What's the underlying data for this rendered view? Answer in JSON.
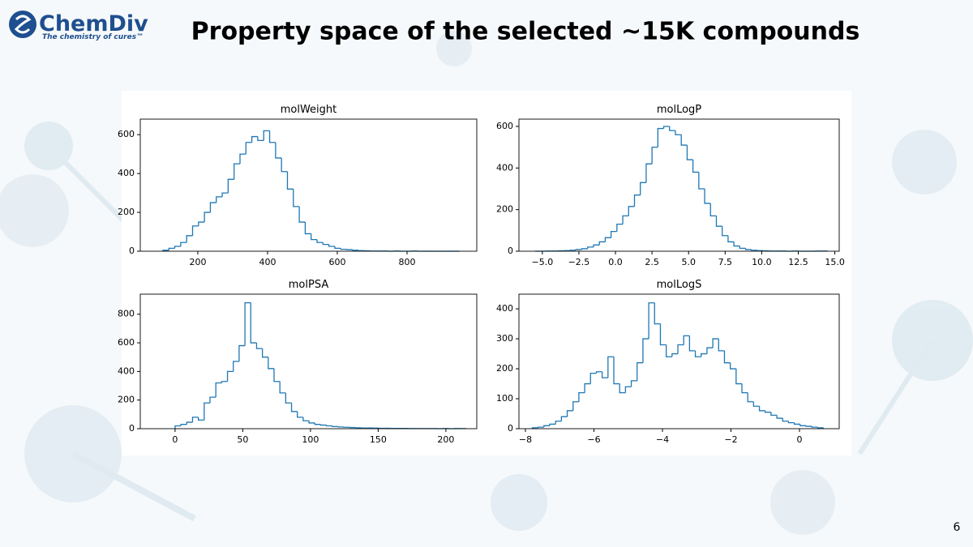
{
  "slide": {
    "logo": "ChemDiv",
    "tagline": "The chemistry of cures™",
    "title": "Property space of the selected ~15K compounds",
    "page_number": "6"
  },
  "chart_data": [
    {
      "type": "histogram",
      "title": "molWeight",
      "color": "#1f77b4",
      "bins": [
        100,
        117,
        134,
        151,
        168,
        185,
        202,
        219,
        236,
        253,
        270,
        287,
        304,
        321,
        338,
        355,
        372,
        389,
        406,
        423,
        440,
        457,
        474,
        491,
        508,
        525,
        542,
        559,
        576,
        593,
        610,
        627,
        644,
        661,
        678,
        695,
        712,
        729,
        746,
        763,
        780,
        797,
        814,
        831,
        848,
        865,
        882,
        899,
        916,
        933,
        950
      ],
      "values": [
        5,
        15,
        25,
        45,
        80,
        130,
        150,
        200,
        250,
        280,
        300,
        370,
        450,
        500,
        560,
        590,
        570,
        620,
        560,
        480,
        410,
        320,
        230,
        150,
        90,
        60,
        45,
        35,
        25,
        15,
        10,
        8,
        5,
        3,
        2,
        1,
        1,
        1,
        0,
        1,
        0,
        0,
        1,
        0,
        0,
        0,
        0,
        0,
        0,
        0
      ],
      "xlim": [
        35,
        1000
      ],
      "xticks": [
        200,
        400,
        600,
        800
      ],
      "ylim": [
        0,
        680
      ],
      "yticks": [
        0,
        200,
        400,
        600
      ]
    },
    {
      "type": "histogram",
      "title": "molLogP",
      "color": "#1f77b4",
      "bins": [
        -5.5,
        -5.1,
        -4.7,
        -4.3,
        -3.9,
        -3.5,
        -3.1,
        -2.7,
        -2.3,
        -1.9,
        -1.5,
        -1.1,
        -0.7,
        -0.3,
        0.1,
        0.5,
        0.9,
        1.3,
        1.7,
        2.1,
        2.5,
        2.9,
        3.3,
        3.7,
        4.1,
        4.5,
        4.9,
        5.3,
        5.7,
        6.1,
        6.5,
        6.9,
        7.3,
        7.7,
        8.1,
        8.5,
        8.9,
        9.3,
        9.7,
        10.1,
        10.5,
        10.9,
        11.3,
        11.7,
        12.1,
        12.5,
        12.9,
        13.3,
        13.7,
        14.1,
        14.5
      ],
      "values": [
        0,
        0,
        1,
        1,
        2,
        3,
        5,
        8,
        12,
        20,
        30,
        45,
        65,
        95,
        130,
        170,
        215,
        270,
        330,
        420,
        500,
        590,
        600,
        580,
        560,
        510,
        440,
        380,
        300,
        230,
        170,
        120,
        75,
        45,
        25,
        14,
        8,
        5,
        3,
        2,
        1,
        1,
        1,
        0,
        1,
        0,
        0,
        0,
        1,
        1
      ],
      "xlim": [
        -6.6,
        15.3
      ],
      "xticks": [
        {
          "value": -5,
          "label": "−5.0"
        },
        {
          "value": -2.5,
          "label": "−2.5"
        },
        {
          "value": 0,
          "label": "0.0"
        },
        {
          "value": 2.5,
          "label": "2.5"
        },
        {
          "value": 5,
          "label": "5.0"
        },
        {
          "value": 7.5,
          "label": "7.5"
        },
        {
          "value": 10,
          "label": "10.0"
        },
        {
          "value": 12.5,
          "label": "12.5"
        },
        {
          "value": 15,
          "label": "15.0"
        }
      ],
      "ylim": [
        0,
        635
      ],
      "yticks": [
        0,
        200,
        400,
        600
      ]
    },
    {
      "type": "histogram",
      "title": "molPSA",
      "color": "#1f77b4",
      "bins": [
        0,
        4.3,
        8.6,
        12.9,
        17.2,
        21.5,
        25.8,
        30.1,
        34.4,
        38.7,
        43,
        47.3,
        51.6,
        55.9,
        60.2,
        64.5,
        68.8,
        73.1,
        77.4,
        81.7,
        86,
        90.3,
        94.6,
        98.9,
        103.2,
        107.5,
        111.8,
        116.1,
        120.4,
        124.7,
        129,
        133.3,
        137.6,
        141.9,
        146.2,
        150.5,
        154.8,
        159.1,
        163.4,
        167.7,
        172,
        176.3,
        180.6,
        184.9,
        189.2,
        193.5,
        197.8,
        202.1,
        206.4,
        210.7,
        215
      ],
      "values": [
        20,
        30,
        45,
        80,
        60,
        180,
        220,
        320,
        330,
        400,
        470,
        580,
        880,
        600,
        560,
        500,
        420,
        330,
        250,
        180,
        120,
        80,
        55,
        40,
        30,
        25,
        20,
        15,
        12,
        10,
        8,
        6,
        5,
        5,
        4,
        3,
        3,
        2,
        2,
        2,
        1,
        1,
        1,
        1,
        1,
        0,
        1,
        0,
        1,
        1
      ],
      "xlim": [
        -25.7,
        222.8
      ],
      "xticks": [
        0,
        50,
        100,
        150,
        200
      ],
      "ylim": [
        0,
        940
      ],
      "yticks": [
        0,
        200,
        400,
        600,
        800
      ]
    },
    {
      "type": "histogram",
      "title": "molLogS",
      "color": "#1f77b4",
      "bins": [
        -7.8,
        -7.63,
        -7.46,
        -7.29,
        -7.12,
        -6.95,
        -6.78,
        -6.61,
        -6.44,
        -6.27,
        -6.1,
        -5.93,
        -5.76,
        -5.59,
        -5.42,
        -5.25,
        -5.08,
        -4.91,
        -4.74,
        -4.57,
        -4.4,
        -4.23,
        -4.06,
        -3.89,
        -3.72,
        -3.55,
        -3.38,
        -3.21,
        -3.04,
        -2.87,
        -2.7,
        -2.53,
        -2.36,
        -2.19,
        -2.02,
        -1.85,
        -1.68,
        -1.51,
        -1.34,
        -1.17,
        -1.0,
        -0.83,
        -0.66,
        -0.49,
        -0.32,
        -0.15,
        0.02,
        0.19,
        0.36,
        0.53,
        0.7
      ],
      "values": [
        3,
        5,
        10,
        15,
        25,
        40,
        60,
        90,
        120,
        150,
        185,
        190,
        170,
        240,
        150,
        120,
        140,
        160,
        220,
        300,
        420,
        350,
        280,
        240,
        250,
        280,
        310,
        260,
        240,
        250,
        270,
        300,
        260,
        220,
        200,
        150,
        120,
        90,
        75,
        60,
        55,
        45,
        35,
        25,
        20,
        15,
        10,
        8,
        5,
        3
      ],
      "xlim": [
        -8.19,
        1.16
      ],
      "xticks": [
        {
          "value": -8,
          "label": "−8"
        },
        {
          "value": -6,
          "label": "−6"
        },
        {
          "value": -4,
          "label": "−4"
        },
        {
          "value": -2,
          "label": "−2"
        },
        0
      ],
      "ylim": [
        0,
        449
      ],
      "yticks": [
        0,
        100,
        200,
        300,
        400
      ]
    }
  ]
}
